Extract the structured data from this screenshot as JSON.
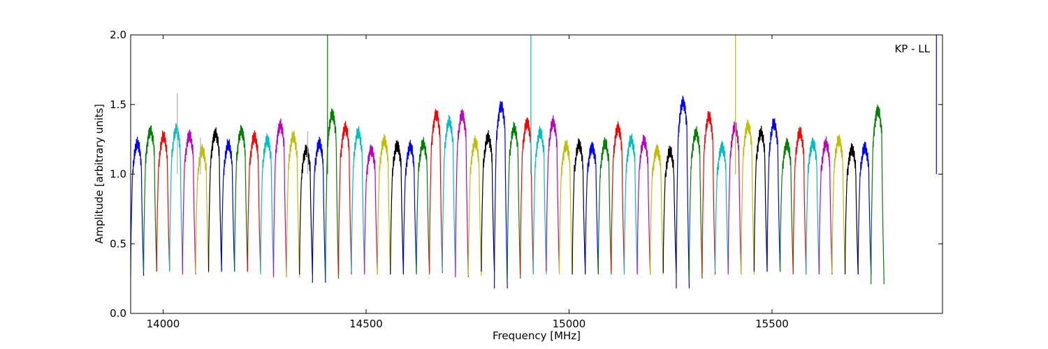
{
  "chart_data": {
    "type": "line",
    "xlabel": "Frequency [MHz]",
    "ylabel": "Amplitude [arbitrary units]",
    "annotation": "KP - LL",
    "annotation_position": "top-right",
    "xlim": [
      13920,
      15920
    ],
    "ylim": [
      0.0,
      2.0
    ],
    "x_ticks": [
      14000,
      14500,
      15000,
      15500
    ],
    "y_ticks": [
      0.0,
      0.5,
      1.0,
      1.5,
      2.0
    ],
    "x_tick_labels": [
      "14000",
      "14500",
      "15000",
      "15500"
    ],
    "y_tick_labels": [
      "0.0",
      "0.5",
      "1.0",
      "1.5",
      "2.0"
    ],
    "grid": false,
    "legend": false,
    "channel_width_mhz": 32,
    "channel_start_mhz": 13920,
    "color_cycle": [
      "#0000ff",
      "#008000",
      "#ff0000",
      "#00bfbf",
      "#bf00bf",
      "#bfbf00",
      "#000000"
    ],
    "channel_peaks": [
      1.24,
      1.34,
      1.29,
      1.35,
      1.3,
      1.19,
      1.32,
      1.23,
      1.34,
      1.29,
      1.27,
      1.38,
      1.29,
      1.2,
      1.24,
      1.46,
      1.36,
      1.32,
      1.2,
      1.26,
      1.23,
      1.22,
      1.24,
      1.46,
      1.4,
      1.46,
      1.25,
      1.29,
      1.52,
      1.35,
      1.4,
      1.32,
      1.4,
      1.23,
      1.23,
      1.22,
      1.24,
      1.36,
      1.27,
      1.26,
      1.2,
      1.18,
      1.55,
      1.32,
      1.44,
      1.22,
      1.36,
      1.38,
      1.32,
      1.39,
      1.24,
      1.32,
      1.25,
      1.24,
      1.27,
      1.2,
      1.21,
      1.49
    ],
    "channel_floors": [
      0.27,
      0.3,
      0.3,
      0.3,
      0.28,
      0.29,
      0.3,
      0.3,
      0.3,
      0.3,
      0.28,
      0.26,
      0.26,
      0.28,
      0.22,
      0.25,
      0.28,
      0.3,
      0.28,
      0.28,
      0.28,
      0.29,
      0.28,
      0.29,
      0.3,
      0.26,
      0.27,
      0.3,
      0.18,
      0.25,
      0.28,
      0.28,
      0.3,
      0.28,
      0.28,
      0.29,
      0.28,
      0.3,
      0.28,
      0.28,
      0.28,
      0.29,
      0.18,
      0.25,
      0.28,
      0.3,
      0.28,
      0.28,
      0.3,
      0.3,
      0.3,
      0.28,
      0.28,
      0.28,
      0.29,
      0.28,
      0.28,
      0.21
    ],
    "spikes": [
      {
        "x": 14405,
        "y": 2.0,
        "color": "#008000"
      },
      {
        "x": 14906,
        "y": 2.0,
        "color": "#00bfbf"
      },
      {
        "x": 15410,
        "y": 2.0,
        "color": "#bfbf00"
      },
      {
        "x": 15905,
        "y": 2.0,
        "color": "#0000ff"
      },
      {
        "x": 14035,
        "y": 1.58,
        "color": "#b0b0b0"
      },
      {
        "x": 14356,
        "y": 1.31,
        "color": "#b0b0b0"
      },
      {
        "x": 14092,
        "y": 1.26,
        "color": "#b0b0b0"
      }
    ]
  }
}
